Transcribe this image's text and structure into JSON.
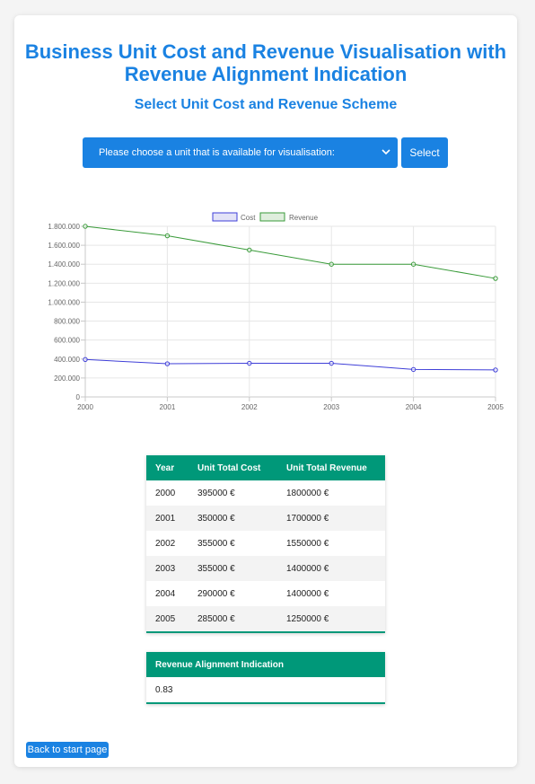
{
  "header": {
    "title_line1": "Business Unit Cost and Revenue Visualisation with",
    "title_line2": "Revenue Alignment Indication",
    "subtitle": "Select Unit Cost and Revenue Scheme"
  },
  "selector": {
    "selected_option": "Please choose a unit that is available for visualisation:",
    "button_label": "Select"
  },
  "chart_data": {
    "type": "line",
    "x": [
      "2000",
      "2001",
      "2002",
      "2003",
      "2004",
      "2005"
    ],
    "series": [
      {
        "name": "Cost",
        "values": [
          395000,
          350000,
          355000,
          355000,
          290000,
          285000
        ],
        "color": "#3f3fd8"
      },
      {
        "name": "Revenue",
        "values": [
          1800000,
          1700000,
          1550000,
          1400000,
          1400000,
          1250000
        ],
        "color": "#3a9b3a"
      }
    ],
    "ylim": [
      0,
      1800000
    ],
    "yticks": [
      "0",
      "200.000",
      "400.000",
      "600.000",
      "800.000",
      "1.000.000",
      "1.200.000",
      "1.400.000",
      "1.600.000",
      "1.800.000"
    ],
    "legend_position": "top-center",
    "grid": true
  },
  "data_table": {
    "headers": [
      "Year",
      "Unit Total Cost",
      "Unit Total Revenue"
    ],
    "rows": [
      [
        "2000",
        "395000 €",
        "1800000 €"
      ],
      [
        "2001",
        "350000 €",
        "1700000 €"
      ],
      [
        "2002",
        "355000 €",
        "1550000 €"
      ],
      [
        "2003",
        "355000 €",
        "1400000 €"
      ],
      [
        "2004",
        "290000 €",
        "1400000 €"
      ],
      [
        "2005",
        "285000 €",
        "1250000 €"
      ]
    ]
  },
  "alignment_table": {
    "header": "Revenue Alignment Indication",
    "value": "0.83"
  },
  "footer": {
    "back_button": "Back to start page"
  },
  "colors": {
    "primary": "#1a82e2",
    "table_header": "#009879"
  }
}
